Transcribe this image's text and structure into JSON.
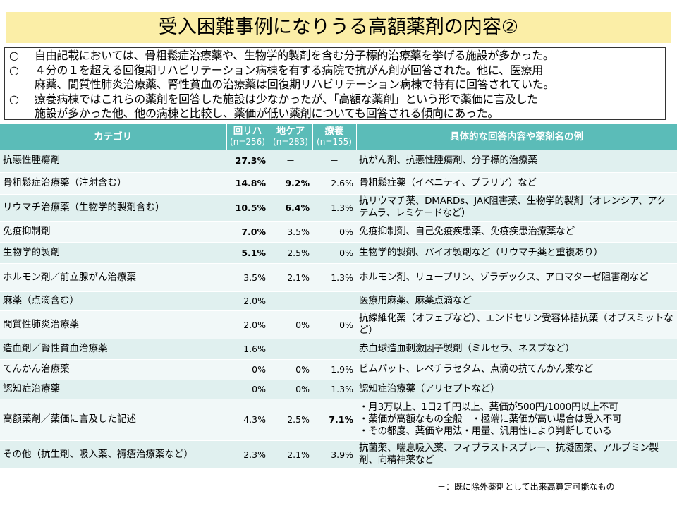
{
  "title": "受入困難事例になりうる高額薬剤の内容②",
  "summary": [
    {
      "mark": "○",
      "text": "自由記載においては、骨粗鬆症治療薬や、生物学的製剤を含む分子標的治療薬を挙げる施設が多かった。",
      "cont": ""
    },
    {
      "mark": "○",
      "text": "４分の１を超える回復期リハビリテーション病棟を有する病院で抗がん剤が回答された。他に、医療用",
      "cont": "麻薬、間質性肺炎治療薬、腎性貧血の治療薬は回復期リハビリテーション病棟で特有に回答されていた。"
    },
    {
      "mark": "○",
      "text": "療養病棟ではこれらの薬剤を回答した施設は少なかったが、「高額な薬剤」という形で薬価に言及した",
      "cont": "施設が多かった他、他の病棟と比較し、薬価が低い薬剤についても回答される傾向にあった。"
    }
  ],
  "table": {
    "headers": {
      "category": "カテゴリ",
      "col1": "回リハ",
      "col1_n": "(n=256)",
      "col2": "地ケア",
      "col2_n": "(n=283)",
      "col3": "療養",
      "col3_n": "(n=155)",
      "detail": "具体的な回答内容や薬剤名の例"
    },
    "rows": [
      {
        "category": "抗悪性腫瘍剤",
        "v1": "27.3%",
        "v2": "－",
        "v3": "－",
        "bold": [
          true,
          false,
          false
        ],
        "detail": "抗がん剤、抗悪性腫瘍剤、分子標的治療薬"
      },
      {
        "category": "骨粗鬆症治療薬（注射含む）",
        "v1": "14.8%",
        "v2": "9.2%",
        "v3": "2.6%",
        "bold": [
          true,
          true,
          false
        ],
        "detail": "骨粗鬆症薬（イベニティ、プラリア）など"
      },
      {
        "category": "リウマチ治療薬（生物学的製剤含む）",
        "v1": "10.5%",
        "v2": "6.4%",
        "v3": "1.3%",
        "bold": [
          true,
          true,
          false
        ],
        "detail": "抗リウマチ薬、DMARDs、JAK阻害薬、生物学的製剤（オレンシア、アクテムラ、レミケードなど）"
      },
      {
        "category": "免疫抑制剤",
        "v1": "7.0%",
        "v2": "3.5%",
        "v3": "0%",
        "bold": [
          true,
          false,
          false
        ],
        "detail": "免疫抑制剤、自己免疫疾患薬、免疫疾患治療薬など"
      },
      {
        "category": "生物学的製剤",
        "v1": "5.1%",
        "v2": "2.5%",
        "v3": "0%",
        "bold": [
          true,
          false,
          false
        ],
        "detail": "生物学的製剤、バイオ製剤など（リウマチ薬と重複あり）"
      },
      {
        "category": "ホルモン剤／前立腺がん治療薬",
        "v1": "3.5%",
        "v2": "2.1%",
        "v3": "1.3%",
        "bold": [
          false,
          false,
          false
        ],
        "detail": "ホルモン剤、リュープリン、ゾラデックス、アロマターゼ阻害剤など"
      },
      {
        "category": "麻薬（点滴含む）",
        "v1": "2.0%",
        "v2": "－",
        "v3": "－",
        "bold": [
          false,
          false,
          false
        ],
        "detail": "医療用麻薬、麻薬点滴など"
      },
      {
        "category": "間質性肺炎治療薬",
        "v1": "2.0%",
        "v2": "0%",
        "v3": "0%",
        "bold": [
          false,
          false,
          false
        ],
        "detail": "抗線維化薬（オフェブなど）、エンドセリン受容体拮抗薬（オプスミットなど）"
      },
      {
        "category": "造血剤／腎性貧血治療薬",
        "v1": "1.6%",
        "v2": "－",
        "v3": "－",
        "bold": [
          false,
          false,
          false
        ],
        "detail": "赤血球造血刺激因子製剤（ミルセラ、ネスプなど）"
      },
      {
        "category": "てんかん治療薬",
        "v1": "0%",
        "v2": "0%",
        "v3": "1.9%",
        "bold": [
          false,
          false,
          false
        ],
        "detail": "ビムパット、レベチラセタム、点滴の抗てんかん薬など"
      },
      {
        "category": "認知症治療薬",
        "v1": "0%",
        "v2": "0%",
        "v3": "1.3%",
        "bold": [
          false,
          false,
          false
        ],
        "detail": "認知症治療薬（アリセプトなど）"
      },
      {
        "category": "高額薬剤／薬価に言及した記述",
        "v1": "4.3%",
        "v2": "2.5%",
        "v3": "7.1%",
        "bold": [
          false,
          false,
          true
        ],
        "detail_lines": [
          "・月3万以上、1日2千円以上、薬価が500円/1000円以上不可",
          "・薬価が高額なもの全般　・極端に薬価が高い場合は受入不可",
          "・その都度、薬価や用法・用量、汎用性により判断している"
        ]
      },
      {
        "category": "その他（抗生剤、吸入薬、褥瘡治療薬など）",
        "v1": "2.3%",
        "v2": "2.1%",
        "v3": "3.9%",
        "bold": [
          false,
          false,
          false
        ],
        "detail": "抗菌薬、喘息吸入薬、フィブラストスプレー、抗凝固薬、アルブミン製剤、向精神薬など"
      }
    ]
  },
  "footnote": "－：既に除外薬剤として出来高算定可能なもの"
}
